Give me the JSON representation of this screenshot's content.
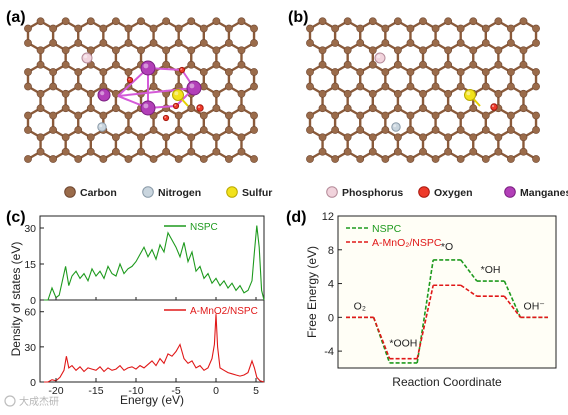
{
  "panels": {
    "a": "(a)",
    "b": "(b)",
    "c": "(c)",
    "d": "(d)"
  },
  "legend": [
    {
      "label": "Carbon",
      "color": "#9a6b4a",
      "edge": "#6e4630"
    },
    {
      "label": "Nitrogen",
      "color": "#c9d5de",
      "edge": "#8a9aa8"
    },
    {
      "label": "Sulfur",
      "color": "#f2e21c",
      "edge": "#b8a800"
    },
    {
      "label": "Phosphorus",
      "color": "#f1d3dc",
      "edge": "#b48a98"
    },
    {
      "label": "Oxygen",
      "color": "#ee3a2a",
      "edge": "#a8180e"
    },
    {
      "label": "Manganese",
      "color": "#b23fb8",
      "edge": "#7a1f80"
    }
  ],
  "colors": {
    "bond": "#8a5a3a",
    "nspc": "#1e9a1e",
    "amno2": "#e01818",
    "mnbond": "#d45ad8",
    "plot_bg": "#fdfdfd"
  },
  "chart_data": [
    {
      "type": "line",
      "panel": "c",
      "xlabel": "Energy (eV)",
      "ylabel": "Density of states (eV)",
      "xlim": [
        -22,
        6
      ],
      "xticks": [
        "-20",
        "-15",
        "-10",
        "-5",
        "0",
        "5"
      ],
      "subplots": [
        {
          "series_name": "NSPC",
          "color": "#1e9a1e",
          "ylim": [
            0,
            35
          ],
          "yticks": [
            "0",
            "15",
            "30"
          ],
          "x": [
            -22,
            -21,
            -20.5,
            -20,
            -19.6,
            -19.2,
            -18.8,
            -18.4,
            -18,
            -17.5,
            -17,
            -16.5,
            -16,
            -15.5,
            -15,
            -14.5,
            -14,
            -13.5,
            -13,
            -12.5,
            -12,
            -11.5,
            -11,
            -10.5,
            -10,
            -9.5,
            -9,
            -8.5,
            -8,
            -7.5,
            -7,
            -6.5,
            -6,
            -5.5,
            -5,
            -4.5,
            -4,
            -3.5,
            -3,
            -2.5,
            -2,
            -1.5,
            -1,
            -0.5,
            0,
            0.5,
            1,
            1.5,
            2,
            2.5,
            3,
            3.5,
            4,
            4.5,
            4.8,
            5.1,
            5.4,
            5.7,
            6
          ],
          "y": [
            0,
            0,
            5,
            1,
            2,
            8,
            14,
            6,
            10,
            12,
            9,
            11,
            8,
            13,
            10,
            12,
            9,
            14,
            11,
            10,
            15,
            11,
            13,
            14,
            16,
            19,
            22,
            18,
            21,
            17,
            23,
            20,
            28,
            25,
            22,
            18,
            24,
            16,
            20,
            12,
            14,
            9,
            11,
            7,
            9,
            6,
            8,
            5,
            7,
            4,
            6,
            3,
            4,
            8,
            20,
            31,
            22,
            4,
            0
          ]
        },
        {
          "series_name": "A-MnO2/NSPC",
          "color": "#e01818",
          "ylim": [
            0,
            70
          ],
          "yticks": [
            "0",
            "30",
            "60"
          ],
          "x": [
            -22,
            -21,
            -20.5,
            -20,
            -19.5,
            -19,
            -18.7,
            -18.4,
            -18,
            -17.5,
            -17,
            -16.5,
            -16,
            -15.5,
            -15,
            -14.5,
            -14,
            -13.5,
            -13,
            -12.5,
            -12,
            -11.5,
            -11,
            -10.5,
            -10,
            -9.5,
            -9,
            -8.5,
            -8,
            -7.5,
            -7,
            -6.5,
            -6,
            -5.5,
            -5,
            -4.5,
            -4,
            -3.5,
            -3,
            -2.5,
            -2,
            -1.5,
            -1,
            -0.5,
            -0.2,
            0,
            0.2,
            0.5,
            1,
            1.5,
            2,
            2.5,
            3,
            3.5,
            4,
            4.5,
            4.8,
            5.1,
            5.5,
            6
          ],
          "y": [
            0,
            0,
            2,
            1,
            4,
            10,
            22,
            12,
            14,
            10,
            13,
            9,
            12,
            11,
            10,
            13,
            9,
            12,
            10,
            11,
            14,
            10,
            12,
            13,
            11,
            14,
            12,
            15,
            18,
            14,
            20,
            16,
            24,
            22,
            26,
            32,
            20,
            16,
            18,
            12,
            14,
            10,
            12,
            20,
            32,
            58,
            30,
            12,
            10,
            8,
            7,
            6,
            5,
            6,
            8,
            18,
            12,
            4,
            1,
            0
          ]
        }
      ]
    },
    {
      "type": "line",
      "panel": "d",
      "title": "",
      "xlabel": "Reaction Coordinate",
      "ylabel": "Free Energy (eV)",
      "ylim": [
        -6,
        12
      ],
      "yticks": [
        "-4",
        "0",
        "4",
        "8",
        "12"
      ],
      "grid": false,
      "legend_position": "top-left",
      "species": [
        {
          "label": "O₂"
        },
        {
          "label": "*OOH"
        },
        {
          "label": "*O"
        },
        {
          "label": "*OH"
        },
        {
          "label": "OH⁻"
        }
      ],
      "series": [
        {
          "name": "NSPC",
          "color": "#1e9a1e",
          "dashed": true,
          "values": [
            0,
            -5.4,
            6.8,
            4.3,
            0
          ]
        },
        {
          "name": "A-MnO₂/NSPC",
          "color": "#e01818",
          "dashed": true,
          "values": [
            0,
            -4.9,
            3.8,
            2.5,
            0
          ]
        }
      ]
    }
  ],
  "watermark": "大成杰研"
}
